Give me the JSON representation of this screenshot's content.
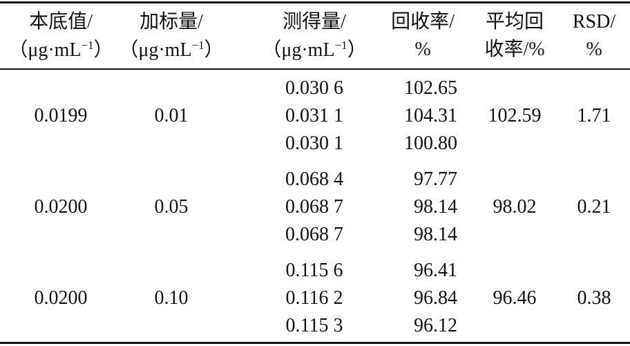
{
  "table": {
    "header": [
      {
        "line1": "本底值/",
        "unit": "（μg·mL",
        "sup": "−1",
        "close": "）"
      },
      {
        "line1": "加标量/",
        "unit": "（μg·mL",
        "sup": "−1",
        "close": "）"
      },
      {
        "line1": "测得量/",
        "unit": "（μg·mL",
        "sup": "−1",
        "close": "）"
      },
      {
        "line1": "回收率/",
        "line2": "%"
      },
      {
        "line1": "平均回",
        "line2": "收率/%"
      },
      {
        "line1": "RSD/",
        "line2": "%"
      }
    ],
    "groups": [
      {
        "background": "0.0199",
        "spike": "0.01",
        "measured": [
          "0.030 6",
          "0.031 1",
          "0.030 1"
        ],
        "recovery": [
          "102.65",
          "104.31",
          "100.80"
        ],
        "mean": "102.59",
        "rsd": "1.71"
      },
      {
        "background": "0.0200",
        "spike": "0.05",
        "measured": [
          "0.068 4",
          "0.068 7",
          "0.068 7"
        ],
        "recovery": [
          "97.77",
          "98.14",
          "98.14"
        ],
        "mean": "98.02",
        "rsd": "0.21"
      },
      {
        "background": "0.0200",
        "spike": "0.10",
        "measured": [
          "0.115 6",
          "0.116 2",
          "0.115 3"
        ],
        "recovery": [
          "96.41",
          "96.84",
          "96.12"
        ],
        "mean": "96.46",
        "rsd": "0.38"
      }
    ]
  }
}
